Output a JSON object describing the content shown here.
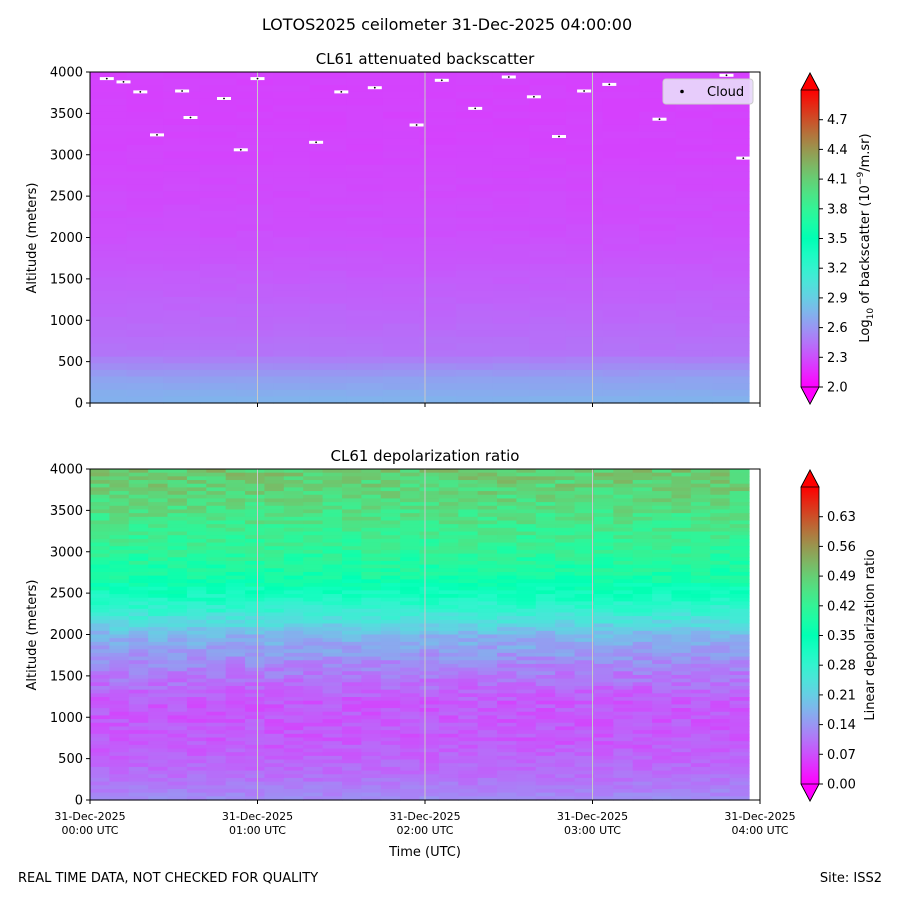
{
  "figure": {
    "suptitle": "LOTOS2025 ceilometer 31-Dec-2025 04:00:00",
    "footer_left": "REAL TIME DATA, NOT CHECKED FOR QUALITY",
    "footer_right": "Site: ISS2"
  },
  "chart_data": [
    {
      "type": "heatmap",
      "title": "CL61 attenuated backscatter",
      "ylabel": "Altitude (meters)",
      "xlabel": "",
      "ylim": [
        0,
        4000
      ],
      "yticks": [
        "0",
        "500",
        "1000",
        "1500",
        "2000",
        "2500",
        "3000",
        "3500",
        "4000"
      ],
      "xticks": [
        {
          "date": "31-Dec-2025",
          "time": "00:00 UTC"
        },
        {
          "date": "31-Dec-2025",
          "time": "01:00 UTC"
        },
        {
          "date": "31-Dec-2025",
          "time": "02:00 UTC"
        },
        {
          "date": "31-Dec-2025",
          "time": "03:00 UTC"
        },
        {
          "date": "31-Dec-2025",
          "time": "04:00 UTC"
        }
      ],
      "xtick_labels_visible": false,
      "grid": "vertical",
      "colormap": "rainbow",
      "colorbar": {
        "label_prefix": "Log",
        "label_sub": "10",
        "label_mid": " of backscatter (10",
        "label_sup": "−9",
        "label_suffix": "/m.sr)",
        "range": [
          2.0,
          5.0
        ],
        "ticks": [
          "2.0",
          "2.3",
          "2.6",
          "2.9",
          "3.2",
          "3.5",
          "3.8",
          "4.1",
          "4.4",
          "4.7"
        ]
      },
      "legend": {
        "label": "Cloud",
        "placement": "top-right"
      },
      "profile": [
        {
          "alt": 0,
          "value": 2.75
        },
        {
          "alt": 300,
          "value": 2.65
        },
        {
          "alt": 600,
          "value": 2.45
        },
        {
          "alt": 1000,
          "value": 2.4
        },
        {
          "alt": 1500,
          "value": 2.35
        },
        {
          "alt": 2000,
          "value": 2.3
        },
        {
          "alt": 2500,
          "value": 2.28
        },
        {
          "alt": 3000,
          "value": 2.26
        },
        {
          "alt": 3500,
          "value": 2.25
        },
        {
          "alt": 4000,
          "value": 2.25
        }
      ],
      "clouds": [
        {
          "hour": 0.1,
          "alt": 3920
        },
        {
          "hour": 0.2,
          "alt": 3880
        },
        {
          "hour": 0.3,
          "alt": 3760
        },
        {
          "hour": 0.4,
          "alt": 3240
        },
        {
          "hour": 0.55,
          "alt": 3770
        },
        {
          "hour": 0.6,
          "alt": 3450
        },
        {
          "hour": 0.8,
          "alt": 3680
        },
        {
          "hour": 0.9,
          "alt": 3060
        },
        {
          "hour": 1.0,
          "alt": 3920
        },
        {
          "hour": 1.35,
          "alt": 3150
        },
        {
          "hour": 1.5,
          "alt": 3760
        },
        {
          "hour": 1.7,
          "alt": 3810
        },
        {
          "hour": 1.95,
          "alt": 3360
        },
        {
          "hour": 2.1,
          "alt": 3900
        },
        {
          "hour": 2.3,
          "alt": 3560
        },
        {
          "hour": 2.5,
          "alt": 3940
        },
        {
          "hour": 2.65,
          "alt": 3700
        },
        {
          "hour": 2.8,
          "alt": 3220
        },
        {
          "hour": 2.95,
          "alt": 3770
        },
        {
          "hour": 3.1,
          "alt": 3850
        },
        {
          "hour": 3.4,
          "alt": 3430
        },
        {
          "hour": 3.8,
          "alt": 3960
        },
        {
          "hour": 3.9,
          "alt": 2960
        }
      ]
    },
    {
      "type": "heatmap",
      "title": "CL61 depolarization ratio",
      "ylabel": "Altitude (meters)",
      "xlabel": "Time (UTC)",
      "ylim": [
        0,
        4000
      ],
      "yticks": [
        "0",
        "500",
        "1000",
        "1500",
        "2000",
        "2500",
        "3000",
        "3500",
        "4000"
      ],
      "xticks": [
        {
          "date": "31-Dec-2025",
          "time": "00:00 UTC"
        },
        {
          "date": "31-Dec-2025",
          "time": "01:00 UTC"
        },
        {
          "date": "31-Dec-2025",
          "time": "02:00 UTC"
        },
        {
          "date": "31-Dec-2025",
          "time": "03:00 UTC"
        },
        {
          "date": "31-Dec-2025",
          "time": "04:00 UTC"
        }
      ],
      "xtick_labels_visible": true,
      "grid": "vertical",
      "colormap": "rainbow",
      "colorbar": {
        "label": "Linear depolarization ratio",
        "range": [
          0.0,
          0.7
        ],
        "ticks": [
          "0.00",
          "0.07",
          "0.14",
          "0.21",
          "0.28",
          "0.35",
          "0.42",
          "0.49",
          "0.56",
          "0.63"
        ]
      },
      "profile": [
        {
          "alt": 0,
          "value": 0.13
        },
        {
          "alt": 300,
          "value": 0.1
        },
        {
          "alt": 700,
          "value": 0.08
        },
        {
          "alt": 1200,
          "value": 0.08
        },
        {
          "alt": 1600,
          "value": 0.12
        },
        {
          "alt": 2000,
          "value": 0.18
        },
        {
          "alt": 2300,
          "value": 0.28
        },
        {
          "alt": 2700,
          "value": 0.38
        },
        {
          "alt": 3100,
          "value": 0.42
        },
        {
          "alt": 3500,
          "value": 0.46
        },
        {
          "alt": 4000,
          "value": 0.5
        }
      ]
    }
  ]
}
